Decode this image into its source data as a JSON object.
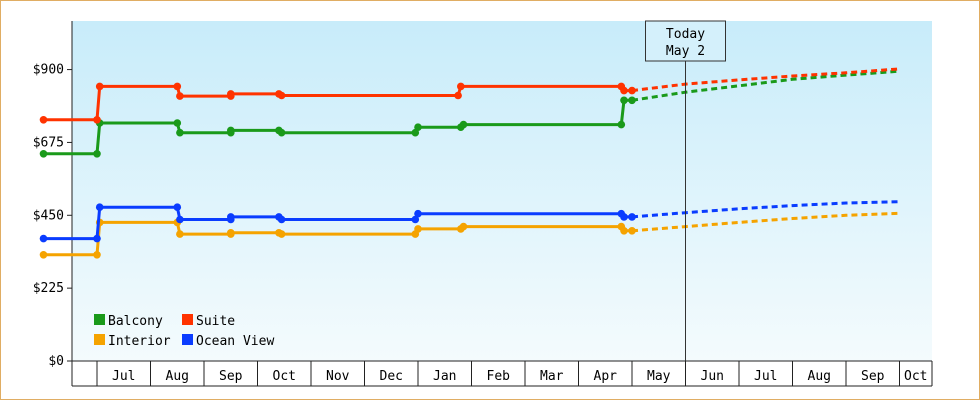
{
  "chart_data": {
    "type": "line",
    "today": {
      "label": "Today",
      "date": "May 2",
      "x": 22.0
    },
    "yticks": [
      {
        "v": 0,
        "label": "$0"
      },
      {
        "v": 225,
        "label": "$225"
      },
      {
        "v": 450,
        "label": "$450"
      },
      {
        "v": 675,
        "label": "$675"
      },
      {
        "v": 900,
        "label": "$900"
      }
    ],
    "ylim": [
      0,
      1050
    ],
    "xlim": [
      10.0,
      37.5
    ],
    "months": [
      {
        "label": "Jul",
        "start": 11,
        "end": 12
      },
      {
        "label": "Aug",
        "start": 12,
        "end": 13
      },
      {
        "label": "Sep",
        "start": 13,
        "end": 14
      },
      {
        "label": "Oct",
        "start": 14,
        "end": 15
      },
      {
        "label": "Nov",
        "start": 15,
        "end": 16
      },
      {
        "label": "Dec",
        "start": 16,
        "end": 17
      },
      {
        "label": "Jan",
        "start": 17,
        "end": 18
      },
      {
        "label": "Feb",
        "start": 18,
        "end": 19
      },
      {
        "label": "Mar",
        "start": 19,
        "end": 20
      },
      {
        "label": "Apr",
        "start": 20,
        "end": 21
      },
      {
        "label": "May",
        "start": 21,
        "end": 22
      },
      {
        "label": "Jun",
        "start": 22,
        "end": 23
      },
      {
        "label": "Jul",
        "start": 23,
        "end": 24
      },
      {
        "label": "Aug",
        "start": 24,
        "end": 25
      },
      {
        "label": "Sep",
        "start": 25,
        "end": 26
      },
      {
        "label": "Oct",
        "start": 26,
        "end": 27
      }
    ],
    "series": [
      {
        "name": "Balcony",
        "color": "#1a9a1a",
        "points": [
          [
            10.0,
            640
          ],
          [
            11.0,
            640
          ],
          [
            11.05,
            735
          ],
          [
            12.5,
            735
          ],
          [
            12.55,
            705
          ],
          [
            13.5,
            705
          ],
          [
            13.5,
            712
          ],
          [
            14.4,
            712
          ],
          [
            14.45,
            705
          ],
          [
            16.95,
            705
          ],
          [
            17.0,
            722
          ],
          [
            17.8,
            722
          ],
          [
            17.85,
            730
          ],
          [
            20.8,
            730
          ],
          [
            20.85,
            805
          ],
          [
            21.0,
            805
          ]
        ],
        "forecast": [
          [
            21.0,
            805
          ],
          [
            22.0,
            830
          ],
          [
            23.0,
            850
          ],
          [
            24.0,
            870
          ],
          [
            25.0,
            883
          ],
          [
            26.0,
            895
          ]
        ]
      },
      {
        "name": "Suite",
        "color": "#ff3300",
        "points": [
          [
            10.0,
            745
          ],
          [
            11.0,
            745
          ],
          [
            11.05,
            848
          ],
          [
            12.5,
            848
          ],
          [
            12.55,
            818
          ],
          [
            13.5,
            818
          ],
          [
            13.5,
            825
          ],
          [
            14.4,
            825
          ],
          [
            14.45,
            820
          ],
          [
            17.75,
            820
          ],
          [
            17.8,
            848
          ],
          [
            20.8,
            848
          ],
          [
            20.85,
            835
          ],
          [
            21.0,
            835
          ]
        ],
        "forecast": [
          [
            21.0,
            835
          ],
          [
            22.0,
            855
          ],
          [
            23.0,
            868
          ],
          [
            24.0,
            880
          ],
          [
            25.0,
            890
          ],
          [
            26.0,
            902
          ]
        ]
      },
      {
        "name": "Interior",
        "color": "#f5a300",
        "points": [
          [
            10.0,
            328
          ],
          [
            11.0,
            328
          ],
          [
            11.05,
            428
          ],
          [
            12.5,
            428
          ],
          [
            12.55,
            392
          ],
          [
            13.5,
            392
          ],
          [
            13.5,
            396
          ],
          [
            14.4,
            396
          ],
          [
            14.45,
            392
          ],
          [
            16.95,
            392
          ],
          [
            17.0,
            408
          ],
          [
            17.8,
            408
          ],
          [
            17.85,
            415
          ],
          [
            20.8,
            415
          ],
          [
            20.85,
            402
          ],
          [
            21.0,
            402
          ]
        ],
        "forecast": [
          [
            21.0,
            402
          ],
          [
            22.0,
            415
          ],
          [
            23.0,
            428
          ],
          [
            24.0,
            440
          ],
          [
            25.0,
            450
          ],
          [
            26.0,
            456
          ]
        ]
      },
      {
        "name": "Ocean View",
        "color": "#0a3cff",
        "points": [
          [
            10.0,
            378
          ],
          [
            11.0,
            378
          ],
          [
            11.05,
            475
          ],
          [
            12.5,
            475
          ],
          [
            12.55,
            437
          ],
          [
            13.5,
            437
          ],
          [
            13.5,
            445
          ],
          [
            14.4,
            445
          ],
          [
            14.45,
            437
          ],
          [
            16.95,
            437
          ],
          [
            17.0,
            455
          ],
          [
            20.8,
            455
          ],
          [
            20.85,
            445
          ],
          [
            21.0,
            445
          ]
        ],
        "forecast": [
          [
            21.0,
            445
          ],
          [
            22.0,
            458
          ],
          [
            23.0,
            470
          ],
          [
            24.0,
            480
          ],
          [
            25.0,
            488
          ],
          [
            26.0,
            492
          ]
        ]
      }
    ],
    "legend": {
      "placement": "bottom-left",
      "order": [
        [
          "Balcony",
          "Suite"
        ],
        [
          "Interior",
          "Ocean View"
        ]
      ]
    },
    "bg_top": "#c8ecfa",
    "bg_bottom": "#f4fbfd",
    "axis_color": "#222222"
  }
}
